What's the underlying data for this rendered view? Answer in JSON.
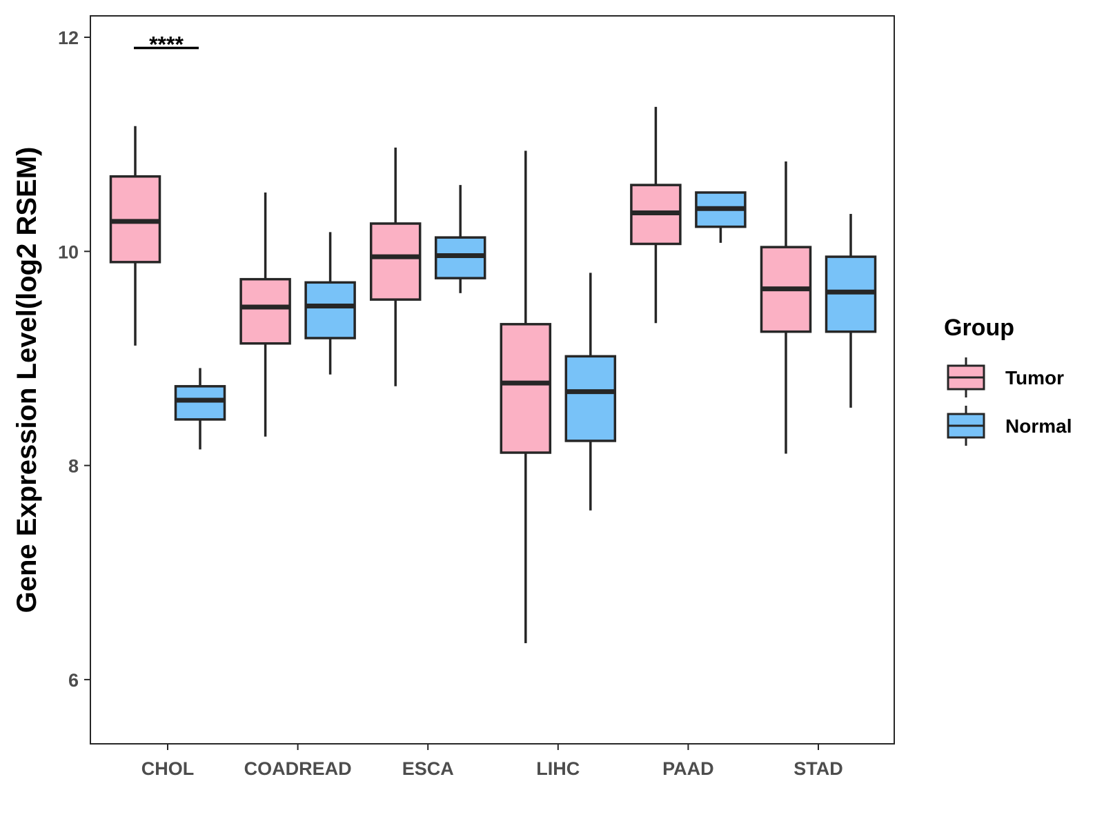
{
  "colors": {
    "tumor": "#FBB1C4",
    "normal": "#78C2F8",
    "stroke": "#262626",
    "tick": "#4d4d4d"
  },
  "chart_data": {
    "type": "boxplot",
    "title": "",
    "xlabel": "",
    "ylabel": "Gene Expression Level(log2 RSEM)",
    "ylim": [
      5.4,
      12.2
    ],
    "yticks": [
      6,
      8,
      10,
      12
    ],
    "categories": [
      "CHOL",
      "COADREAD",
      "ESCA",
      "LIHC",
      "PAAD",
      "STAD"
    ],
    "legend": {
      "title": "Group",
      "position": "right",
      "entries": [
        "Tumor",
        "Normal"
      ]
    },
    "series": [
      {
        "name": "Tumor",
        "boxes": [
          {
            "category": "CHOL",
            "min": 9.12,
            "q1": 9.9,
            "median": 10.28,
            "q3": 10.7,
            "max": 11.17
          },
          {
            "category": "COADREAD",
            "min": 8.27,
            "q1": 9.14,
            "median": 9.48,
            "q3": 9.74,
            "max": 10.55
          },
          {
            "category": "ESCA",
            "min": 8.74,
            "q1": 9.55,
            "median": 9.95,
            "q3": 10.26,
            "max": 10.97
          },
          {
            "category": "LIHC",
            "min": 6.34,
            "q1": 8.12,
            "median": 8.77,
            "q3": 9.32,
            "max": 10.94
          },
          {
            "category": "PAAD",
            "min": 9.33,
            "q1": 10.07,
            "median": 10.36,
            "q3": 10.62,
            "max": 11.35
          },
          {
            "category": "STAD",
            "min": 8.11,
            "q1": 9.25,
            "median": 9.65,
            "q3": 10.04,
            "max": 10.84
          }
        ]
      },
      {
        "name": "Normal",
        "boxes": [
          {
            "category": "CHOL",
            "min": 8.15,
            "q1": 8.43,
            "median": 8.61,
            "q3": 8.74,
            "max": 8.91
          },
          {
            "category": "COADREAD",
            "min": 8.85,
            "q1": 9.19,
            "median": 9.49,
            "q3": 9.71,
            "max": 10.18
          },
          {
            "category": "ESCA",
            "min": 9.61,
            "q1": 9.75,
            "median": 9.96,
            "q3": 10.13,
            "max": 10.62
          },
          {
            "category": "LIHC",
            "min": 7.58,
            "q1": 8.23,
            "median": 8.69,
            "q3": 9.02,
            "max": 9.8
          },
          {
            "category": "PAAD",
            "min": 10.08,
            "q1": 10.23,
            "median": 10.4,
            "q3": 10.55,
            "max": 10.55
          },
          {
            "category": "STAD",
            "min": 8.54,
            "q1": 9.25,
            "median": 9.62,
            "q3": 9.95,
            "max": 10.35
          }
        ]
      }
    ],
    "annotations": [
      {
        "category": "CHOL",
        "text": "****",
        "y": 11.9
      }
    ]
  }
}
